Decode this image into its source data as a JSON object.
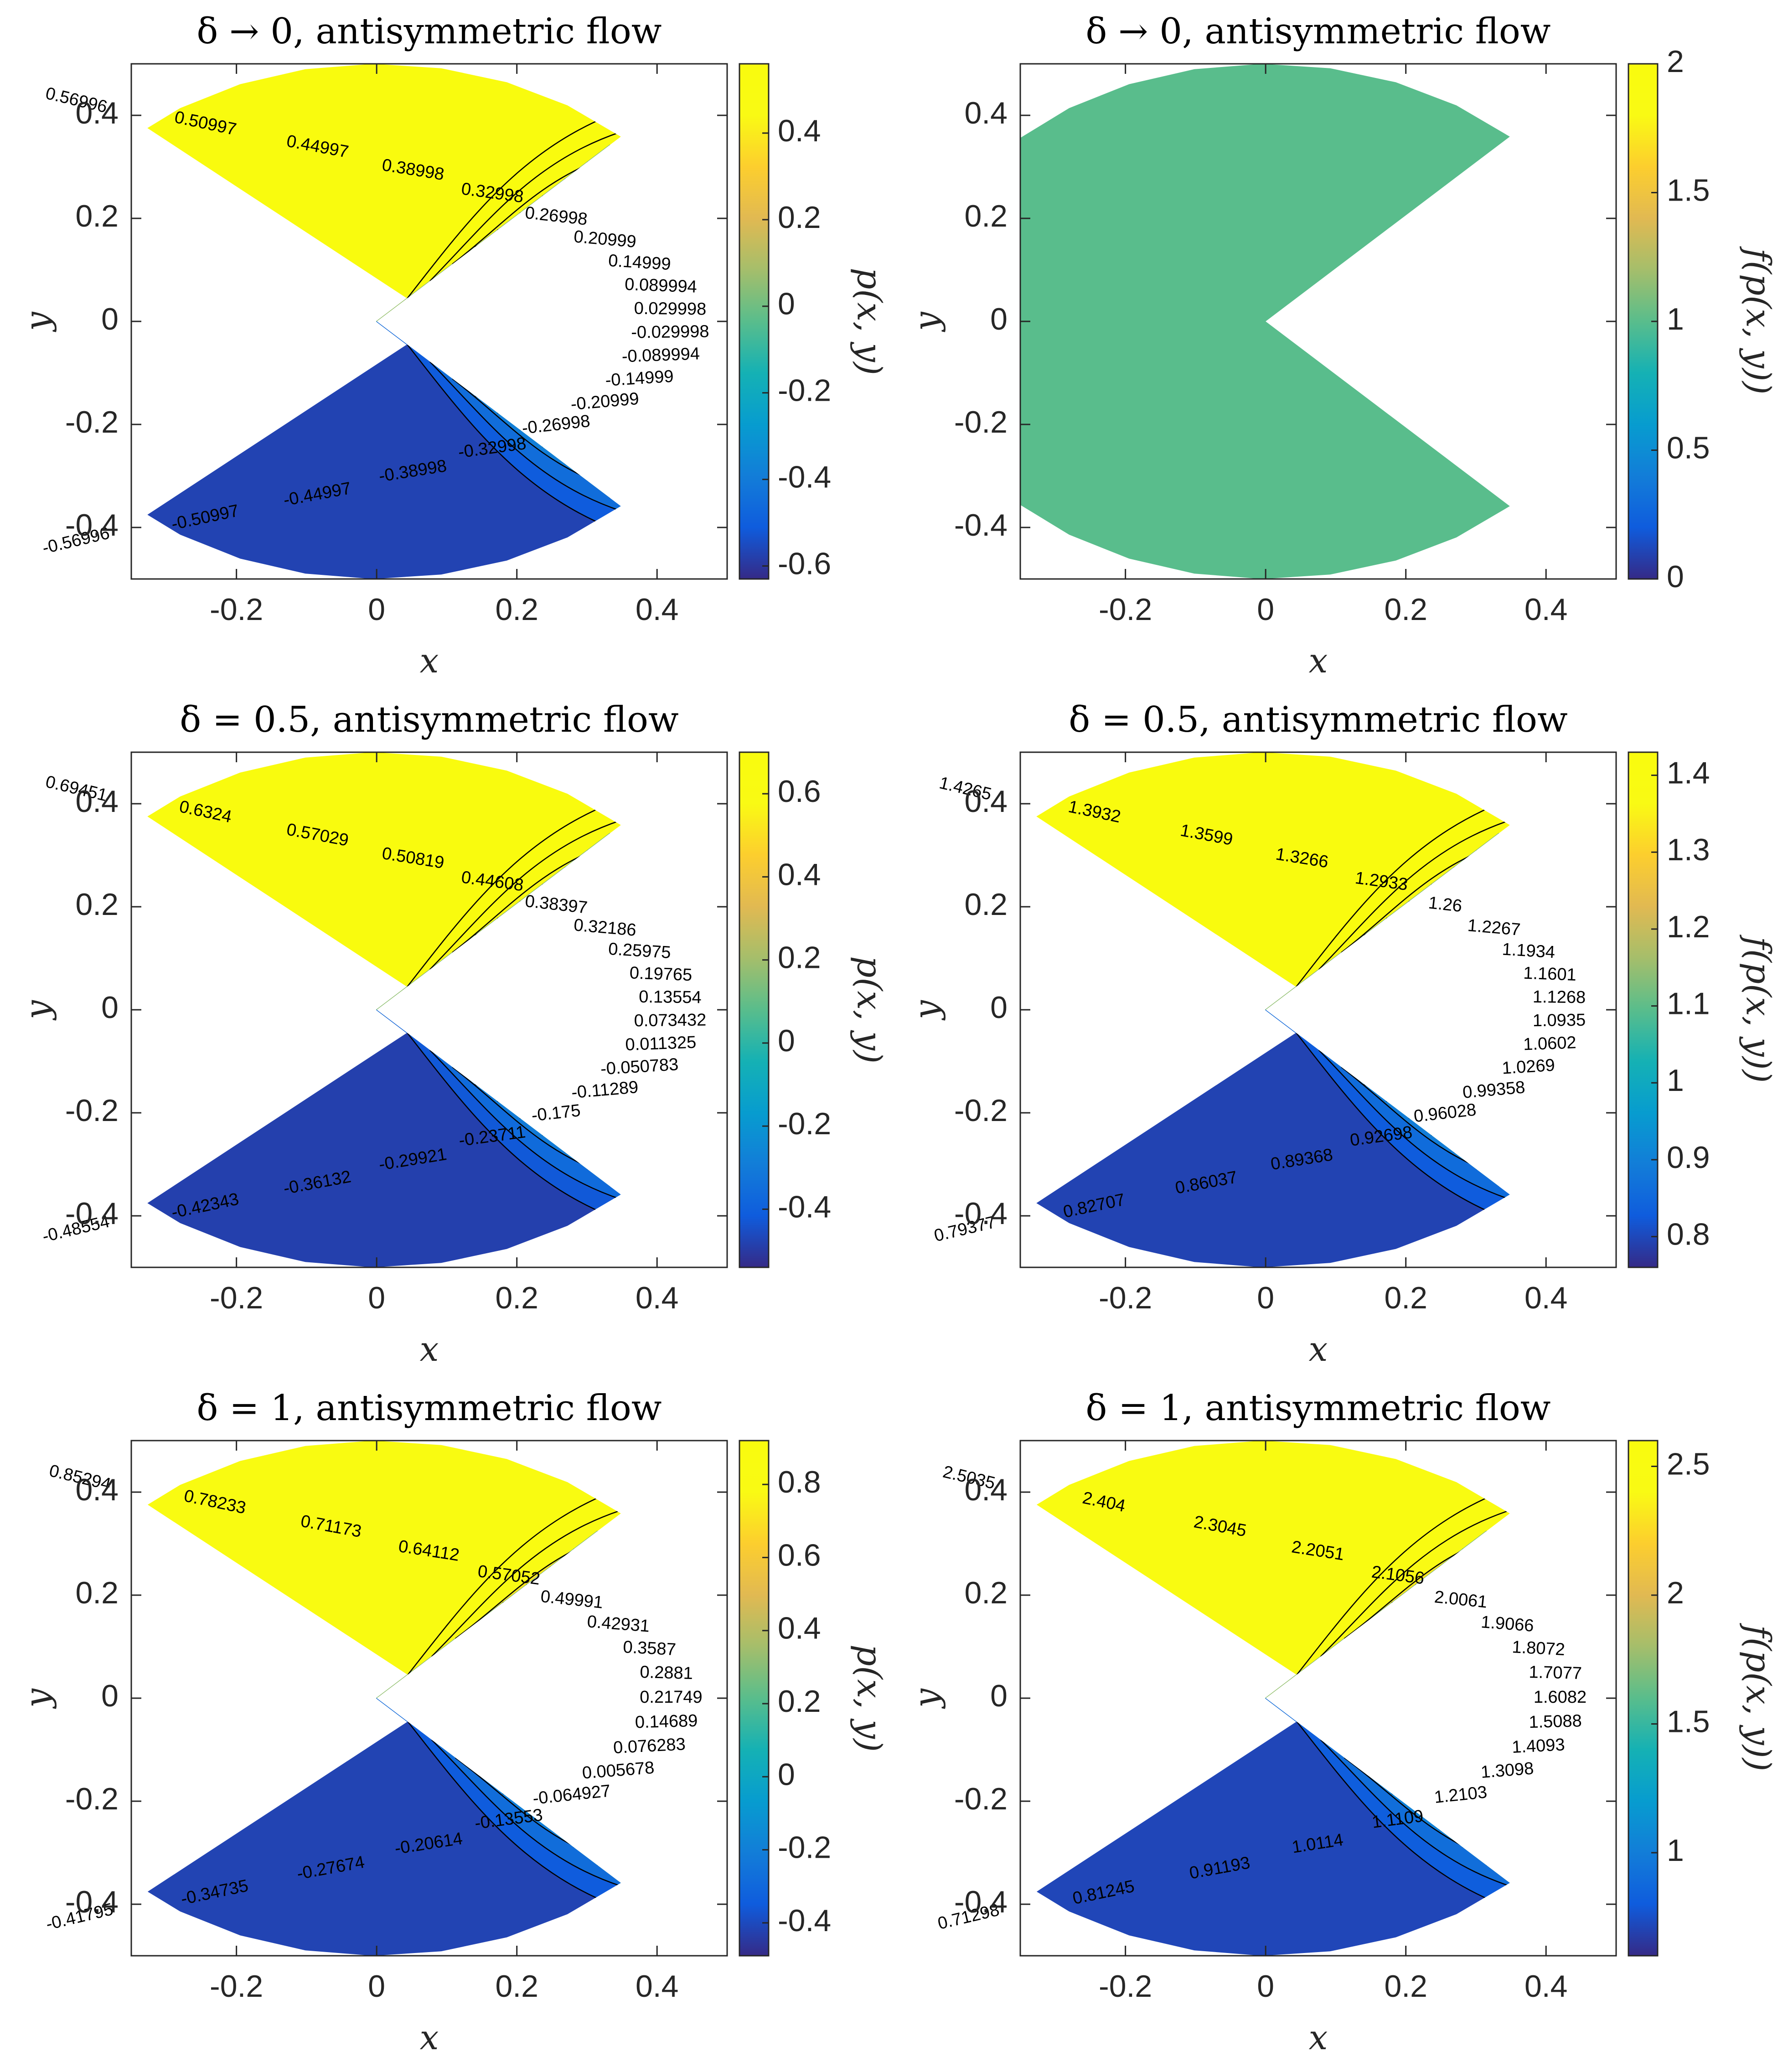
{
  "chart_data": [
    {
      "type": "contour",
      "title": "δ → 0, antisymmetric flow",
      "xlabel": "x",
      "ylabel": "y",
      "colorbar_label": "p(x, y)",
      "xlim": [
        -0.35,
        0.5
      ],
      "ylim": [
        -0.5,
        0.5
      ],
      "x_ticks": [
        "-0.2",
        "0",
        "0.2",
        "0.4"
      ],
      "y_ticks": [
        "0.4",
        "0.2",
        "0",
        "-0.2",
        "-0.4"
      ],
      "colorbar_range": [
        -0.63,
        0.56
      ],
      "colorbar_ticks": [
        "0.4",
        "0.2",
        "0",
        "-0.2",
        "-0.4",
        "-0.6"
      ],
      "colorbar_tick_values": [
        0.4,
        0.2,
        0,
        -0.2,
        -0.4,
        -0.6
      ],
      "levels": [
        "0.56996",
        "0.50997",
        "0.44997",
        "0.38998",
        "0.32998",
        "0.26998",
        "0.20999",
        "0.14999",
        "0.089994",
        "0.029998",
        "-0.029998",
        "-0.089994",
        "-0.14999",
        "-0.20999",
        "-0.26998",
        "-0.32998",
        "-0.38998",
        "-0.44997",
        "-0.50997",
        "-0.56996"
      ],
      "uniform_value": null,
      "colormap": "parula"
    },
    {
      "type": "contour",
      "title": "δ → 0, antisymmetric flow",
      "xlabel": "x",
      "ylabel": "y",
      "colorbar_label": "f(p(x, y))",
      "xlim": [
        -0.35,
        0.5
      ],
      "ylim": [
        -0.5,
        0.5
      ],
      "x_ticks": [
        "-0.2",
        "0",
        "0.2",
        "0.4"
      ],
      "y_ticks": [
        "0.4",
        "0.2",
        "0",
        "-0.2",
        "-0.4"
      ],
      "colorbar_range": [
        0,
        2
      ],
      "colorbar_ticks": [
        "2",
        "1.5",
        "1",
        "0.5",
        "0"
      ],
      "colorbar_tick_values": [
        2,
        1.5,
        1,
        0.5,
        0
      ],
      "levels": [],
      "uniform_value": 1,
      "colormap": "parula"
    },
    {
      "type": "contour",
      "title": "δ = 0.5, antisymmetric flow",
      "xlabel": "x",
      "ylabel": "y",
      "colorbar_label": "p(x, y)",
      "xlim": [
        -0.35,
        0.5
      ],
      "ylim": [
        -0.5,
        0.5
      ],
      "x_ticks": [
        "-0.2",
        "0",
        "0.2",
        "0.4"
      ],
      "y_ticks": [
        "0.4",
        "0.2",
        "0",
        "-0.2",
        "-0.4"
      ],
      "colorbar_range": [
        -0.54,
        0.7
      ],
      "colorbar_ticks": [
        "0.6",
        "0.4",
        "0.2",
        "0",
        "-0.2",
        "-0.4"
      ],
      "colorbar_tick_values": [
        0.6,
        0.4,
        0.2,
        0,
        -0.2,
        -0.4
      ],
      "levels": [
        "0.69451",
        "0.6324",
        "0.57029",
        "0.50819",
        "0.44608",
        "0.38397",
        "0.32186",
        "0.25975",
        "0.19765",
        "0.13554",
        "0.073432",
        "0.011325",
        "-0.050783",
        "-0.11289",
        "-0.175",
        "-0.23711",
        "-0.29921",
        "-0.36132",
        "-0.42343",
        "-0.48554"
      ],
      "uniform_value": null,
      "colormap": "parula"
    },
    {
      "type": "contour",
      "title": "δ = 0.5, antisymmetric flow",
      "xlabel": "x",
      "ylabel": "y",
      "colorbar_label": "f(p(x, y))",
      "xlim": [
        -0.35,
        0.5
      ],
      "ylim": [
        -0.5,
        0.5
      ],
      "x_ticks": [
        "-0.2",
        "0",
        "0.2",
        "0.4"
      ],
      "y_ticks": [
        "0.4",
        "0.2",
        "0",
        "-0.2",
        "-0.4"
      ],
      "colorbar_range": [
        0.76,
        1.43
      ],
      "colorbar_ticks": [
        "1.4",
        "1.3",
        "1.2",
        "1.1",
        "1",
        "0.9",
        "0.8"
      ],
      "colorbar_tick_values": [
        1.4,
        1.3,
        1.2,
        1.1,
        1,
        0.9,
        0.8
      ],
      "levels": [
        "1.4265",
        "1.3932",
        "1.3599",
        "1.3266",
        "1.2933",
        "1.26",
        "1.2267",
        "1.1934",
        "1.1601",
        "1.1268",
        "1.0935",
        "1.0602",
        "1.0269",
        "0.99358",
        "0.96028",
        "0.92698",
        "0.89368",
        "0.86037",
        "0.82707",
        "0.79377"
      ],
      "uniform_value": null,
      "colormap": "parula"
    },
    {
      "type": "contour",
      "title": "δ = 1, antisymmetric flow",
      "xlabel": "x",
      "ylabel": "y",
      "colorbar_label": "p(x, y)",
      "xlim": [
        -0.35,
        0.5
      ],
      "ylim": [
        -0.5,
        0.5
      ],
      "x_ticks": [
        "-0.2",
        "0",
        "0.2",
        "0.4"
      ],
      "y_ticks": [
        "0.4",
        "0.2",
        "0",
        "-0.2",
        "-0.4"
      ],
      "colorbar_range": [
        -0.49,
        0.92
      ],
      "colorbar_ticks": [
        "0.8",
        "0.6",
        "0.4",
        "0.2",
        "0",
        "-0.2",
        "-0.4"
      ],
      "colorbar_tick_values": [
        0.8,
        0.6,
        0.4,
        0.2,
        0,
        -0.2,
        -0.4
      ],
      "levels": [
        "0.85294",
        "0.78233",
        "0.71173",
        "0.64112",
        "0.57052",
        "0.49991",
        "0.42931",
        "0.3587",
        "0.2881",
        "0.21749",
        "0.14689",
        "0.076283",
        "0.005678",
        "-0.064927",
        "-0.13553",
        "-0.20614",
        "-0.27674",
        "-0.34735",
        "-0.41795"
      ],
      "uniform_value": null,
      "colormap": "parula"
    },
    {
      "type": "contour",
      "title": "δ = 1, antisymmetric flow",
      "xlabel": "x",
      "ylabel": "y",
      "colorbar_label": "f(p(x, y))",
      "xlim": [
        -0.35,
        0.5
      ],
      "ylim": [
        -0.5,
        0.5
      ],
      "x_ticks": [
        "-0.2",
        "0",
        "0.2",
        "0.4"
      ],
      "y_ticks": [
        "0.4",
        "0.2",
        "0",
        "-0.2",
        "-0.4"
      ],
      "colorbar_range": [
        0.6,
        2.6
      ],
      "colorbar_ticks": [
        "2.5",
        "2",
        "1.5",
        "1"
      ],
      "colorbar_tick_values": [
        2.5,
        2,
        1.5,
        1
      ],
      "levels": [
        "2.5035",
        "2.404",
        "2.3045",
        "2.2051",
        "2.1056",
        "2.0061",
        "1.9066",
        "1.8072",
        "1.7077",
        "1.6082",
        "1.5088",
        "1.4093",
        "1.3098",
        "1.2103",
        "1.1109",
        "1.0114",
        "0.91193",
        "0.81245",
        "0.71298"
      ],
      "uniform_value": null,
      "colormap": "parula"
    }
  ]
}
